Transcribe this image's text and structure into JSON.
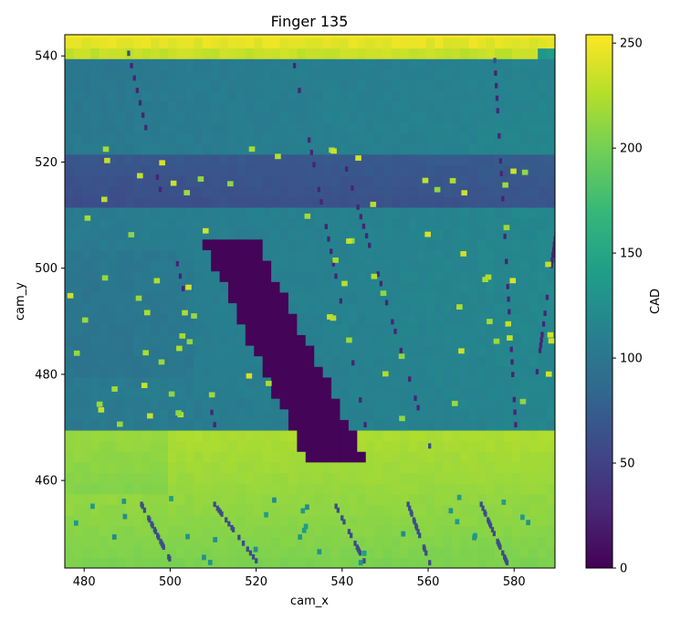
{
  "chart_data": {
    "type": "heatmap",
    "title": "Finger 135",
    "xlabel": "cam_x",
    "ylabel": "cam_y",
    "xlim": [
      475.5,
      589.5
    ],
    "ylim": [
      443.5,
      544.0
    ],
    "xticks": [
      480,
      500,
      520,
      540,
      560,
      580
    ],
    "yticks": [
      460,
      480,
      500,
      520,
      540
    ],
    "colorbar": {
      "label": "CAD",
      "min": 0,
      "max": 254,
      "ticks": [
        0,
        50,
        100,
        150,
        200,
        250
      ],
      "colormap": "viridis"
    },
    "colormap_stops": [
      "#440154",
      "#482878",
      "#3e4989",
      "#31688e",
      "#26828e",
      "#1f9e89",
      "#35b779",
      "#6ece58",
      "#b5de2b",
      "#fde725"
    ],
    "regions": [
      {
        "name": "background-gradient",
        "cam_y_range": [
          470,
          538
        ],
        "cad_approx": [
          85,
          125
        ]
      },
      {
        "name": "top-band",
        "cam_y_range": [
          538,
          544
        ],
        "cad_approx": [
          200,
          254
        ]
      },
      {
        "name": "dark-band",
        "cam_y_range": [
          512,
          522
        ],
        "cad_approx": [
          40,
          70
        ]
      },
      {
        "name": "dark-diagonal-blob",
        "cam_y_range": [
          463,
          505
        ],
        "cam_x_range": [
          507,
          545
        ],
        "cad_approx": [
          0,
          5
        ]
      },
      {
        "name": "bottom-band",
        "cam_y_range": [
          443.5,
          469
        ],
        "cad_approx": [
          195,
          225
        ]
      }
    ]
  }
}
